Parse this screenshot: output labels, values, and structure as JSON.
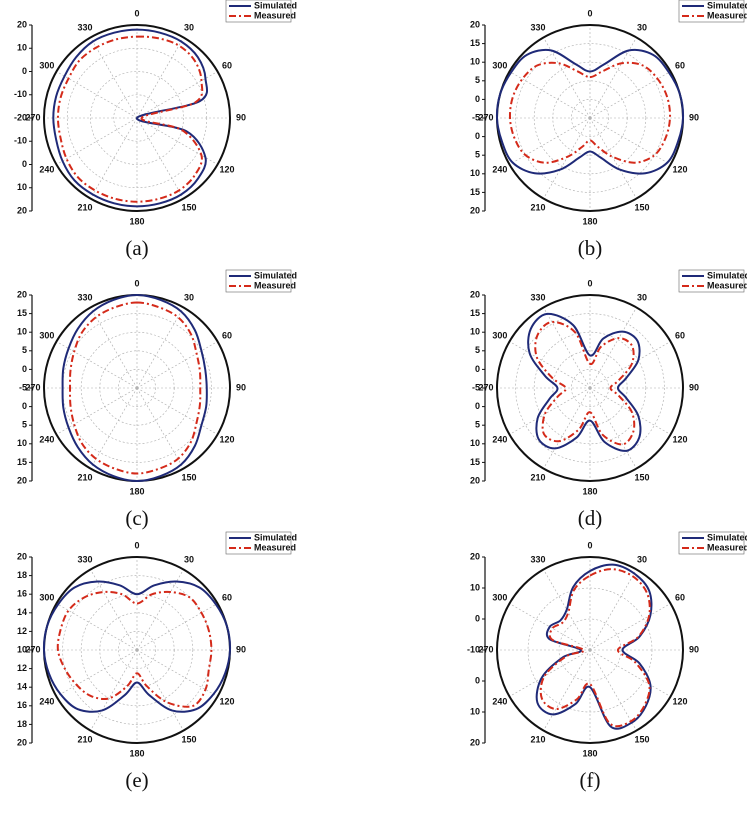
{
  "chart_data": [
    {
      "type": "polar",
      "caption": "(a)",
      "rlim": [
        -20,
        20
      ],
      "rticks": [
        -20,
        -10,
        0,
        10,
        20
      ],
      "theta": [
        0,
        15,
        30,
        45,
        60,
        75,
        90,
        105,
        120,
        135,
        150,
        165,
        180,
        195,
        210,
        225,
        240,
        255,
        270,
        285,
        300,
        315,
        330,
        345
      ],
      "thetaticks": [
        0,
        30,
        60,
        90,
        120,
        150,
        180,
        210,
        240,
        270,
        300,
        330
      ],
      "series": [
        {
          "name": "Simulated",
          "color": "#1f2a78",
          "values": [
            18,
            18,
            18,
            17,
            14,
            8,
            -20,
            2,
            14,
            17,
            18,
            18,
            18,
            18,
            18,
            18,
            17,
            16,
            16,
            16,
            16,
            17,
            18,
            18
          ]
        },
        {
          "name": "Measured",
          "color": "#d42a1a",
          "values": [
            15,
            15.5,
            16,
            15,
            12,
            6,
            -18,
            0,
            12,
            15,
            16,
            16,
            16,
            16,
            16,
            16,
            15,
            14,
            14,
            14,
            14,
            15,
            15,
            15
          ]
        }
      ]
    },
    {
      "type": "polar",
      "caption": "(b)",
      "rlim": [
        -5,
        20
      ],
      "rticks": [
        -5,
        0,
        5,
        10,
        15,
        20
      ],
      "theta": [
        0,
        15,
        30,
        45,
        60,
        75,
        90,
        105,
        120,
        135,
        150,
        165,
        180,
        195,
        210,
        225,
        240,
        255,
        270,
        285,
        300,
        315,
        330,
        345
      ],
      "thetaticks": [
        0,
        30,
        60,
        90,
        120,
        150,
        180,
        210,
        240,
        270,
        300,
        330
      ],
      "series": [
        {
          "name": "Simulated",
          "color": "#1f2a78",
          "values": [
            7.5,
            10,
            16,
            19,
            19.5,
            20,
            20,
            19.5,
            19,
            16,
            11,
            6,
            4,
            6,
            11,
            16,
            19,
            19.5,
            20,
            20,
            19.5,
            19,
            16,
            10
          ]
        },
        {
          "name": "Measured",
          "color": "#d42a1a",
          "values": [
            6,
            8,
            12,
            15,
            16,
            16.5,
            16.5,
            16,
            15,
            12,
            7,
            3,
            1,
            3,
            7,
            12,
            15,
            16,
            16.5,
            16.5,
            16,
            15,
            12,
            8
          ]
        }
      ]
    },
    {
      "type": "polar",
      "caption": "(c)",
      "rlim": [
        -5,
        20
      ],
      "rticks": [
        -5,
        0,
        5,
        10,
        15,
        20
      ],
      "theta": [
        0,
        15,
        30,
        45,
        60,
        75,
        90,
        105,
        120,
        135,
        150,
        165,
        180,
        195,
        210,
        225,
        240,
        255,
        270,
        285,
        300,
        315,
        330,
        345
      ],
      "thetaticks": [
        0,
        30,
        60,
        90,
        120,
        150,
        180,
        210,
        240,
        270,
        300,
        330
      ],
      "series": [
        {
          "name": "Simulated",
          "color": "#1f2a78",
          "values": [
            20,
            19.5,
            18.75,
            17,
            15,
            14,
            13.75,
            14.25,
            15,
            17,
            18.75,
            19.5,
            20,
            19.5,
            18.75,
            17.5,
            16.25,
            15.5,
            15,
            15.5,
            16.25,
            17.5,
            18.75,
            19.5
          ]
        },
        {
          "name": "Measured",
          "color": "#d42a1a",
          "values": [
            18,
            17.5,
            17,
            15.5,
            13.5,
            12.5,
            12,
            12.5,
            13.5,
            15.5,
            17,
            17.5,
            18,
            17.5,
            17,
            16,
            14.5,
            13.5,
            13,
            13.5,
            14.5,
            16,
            17,
            17.5
          ]
        }
      ]
    },
    {
      "type": "polar",
      "caption": "(d)",
      "rlim": [
        -5,
        20
      ],
      "rticks": [
        -5,
        0,
        5,
        10,
        15,
        20
      ],
      "theta": [
        0,
        15,
        30,
        45,
        60,
        75,
        90,
        105,
        120,
        135,
        150,
        165,
        180,
        195,
        210,
        225,
        240,
        255,
        270,
        285,
        300,
        315,
        330,
        345
      ],
      "thetaticks": [
        0,
        30,
        60,
        90,
        120,
        150,
        180,
        210,
        240,
        270,
        300,
        330
      ],
      "series": [
        {
          "name": "Simulated",
          "color": "#1f2a78",
          "values": [
            3.75,
            8.75,
            12.5,
            13,
            10,
            5,
            2.5,
            5,
            10,
            13.75,
            14.5,
            10,
            3.75,
            8.75,
            13.75,
            14.5,
            11.25,
            6.25,
            3.75,
            7.5,
            13.75,
            17.5,
            18,
            12.5
          ]
        },
        {
          "name": "Measured",
          "color": "#d42a1a",
          "values": [
            1.5,
            6.5,
            10.5,
            11,
            8,
            3,
            0.5,
            3,
            8,
            11.5,
            12.5,
            8,
            1.5,
            6.5,
            11.5,
            12.5,
            9,
            4,
            1.5,
            5.5,
            11.5,
            15,
            15.5,
            10.5
          ]
        }
      ]
    },
    {
      "type": "polar",
      "caption": "(e)",
      "rlim": [
        10,
        20
      ],
      "rticks": [
        10,
        12,
        14,
        16,
        18,
        20
      ],
      "theta": [
        0,
        15,
        30,
        45,
        60,
        75,
        90,
        105,
        120,
        135,
        150,
        165,
        180,
        195,
        210,
        225,
        240,
        255,
        270,
        285,
        300,
        315,
        330,
        345
      ],
      "thetaticks": [
        0,
        30,
        60,
        90,
        120,
        150,
        180,
        210,
        240,
        270,
        300,
        330
      ],
      "series": [
        {
          "name": "Simulated",
          "color": "#1f2a78",
          "values": [
            16,
            17.2,
            18.5,
            19.5,
            19.8,
            20,
            20,
            19.8,
            19.5,
            19,
            17.5,
            15,
            13.5,
            15,
            17.5,
            19,
            19.5,
            19.8,
            20,
            20,
            19.8,
            19.5,
            18.5,
            17.2
          ]
        },
        {
          "name": "Measured",
          "color": "#d42a1a",
          "values": [
            15,
            16.2,
            17.2,
            18,
            18,
            18,
            18,
            18,
            18.5,
            18.5,
            16.5,
            14,
            12.5,
            14,
            16,
            17,
            17.5,
            18,
            18.5,
            18.5,
            18.5,
            18,
            17.2,
            16.2
          ]
        }
      ]
    },
    {
      "type": "polar",
      "caption": "(f)",
      "rlim": [
        -10,
        20
      ],
      "rticks": [
        -10,
        0,
        10,
        20
      ],
      "theta": [
        0,
        15,
        30,
        45,
        60,
        75,
        90,
        105,
        120,
        135,
        150,
        165,
        180,
        195,
        210,
        225,
        240,
        255,
        270,
        285,
        300,
        315,
        330,
        345
      ],
      "thetaticks": [
        0,
        30,
        60,
        90,
        120,
        150,
        180,
        210,
        240,
        270,
        300,
        330
      ],
      "series": [
        {
          "name": "Simulated",
          "color": "#1f2a78",
          "values": [
            15.5,
            18.5,
            18.5,
            17,
            12.5,
            6.5,
            0.5,
            6.5,
            12.5,
            15.5,
            17,
            15.5,
            2,
            8,
            14,
            14,
            8,
            -1,
            -7,
            3.5,
            5,
            3.5,
            5,
            11
          ]
        },
        {
          "name": "Measured",
          "color": "#d42a1a",
          "values": [
            14,
            17,
            17.5,
            16,
            12,
            6,
            -1,
            5,
            12,
            15,
            16.5,
            14.5,
            1,
            6.5,
            12,
            12,
            7,
            -2,
            -8,
            2.5,
            4,
            2.5,
            4,
            10
          ]
        }
      ]
    }
  ]
}
